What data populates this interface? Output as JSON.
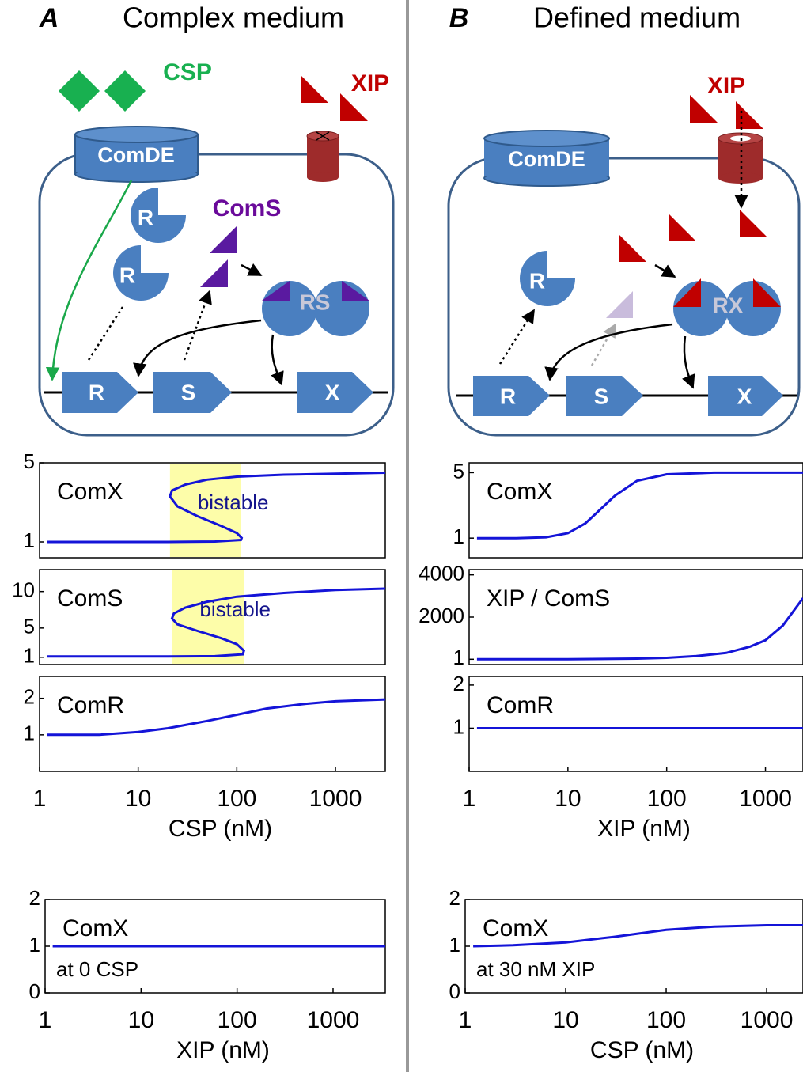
{
  "panels": [
    {
      "letter": "A",
      "title": "Complex medium",
      "diagram": {
        "signal": "CSP",
        "peptide": "XIP",
        "receptor": "ComDE",
        "regulator_1": "R",
        "regulator_2": "R",
        "comS": "ComS",
        "complex": "RS",
        "genes": [
          "R",
          "S",
          "X"
        ]
      },
      "charts": [
        {
          "type": "line",
          "label": "ComX",
          "color": "#1414d8",
          "xscale": "log",
          "xlim": [
            1,
            3200
          ],
          "ylim": [
            0.2,
            5
          ],
          "yticks": [
            1,
            5
          ],
          "highlight": {
            "range": [
              21,
              110
            ],
            "label": "bistable"
          },
          "x": [
            1.2,
            5,
            20,
            60,
            110,
            112,
            100,
            70,
            40,
            25,
            21,
            22,
            30,
            50,
            100,
            300,
            1000,
            3200
          ],
          "values": [
            1,
            1,
            1,
            1.02,
            1.1,
            1.2,
            1.45,
            1.8,
            2.3,
            2.8,
            3.3,
            3.6,
            3.9,
            4.15,
            4.3,
            4.4,
            4.45,
            4.5
          ]
        },
        {
          "type": "line",
          "label": "ComS",
          "color": "#1414d8",
          "xscale": "log",
          "xlim": [
            1,
            3200
          ],
          "ylim": [
            0,
            13
          ],
          "yticks": [
            1,
            5,
            10
          ],
          "highlight": {
            "range": [
              22,
              118
            ],
            "label": "bistable"
          },
          "x": [
            1.2,
            5,
            20,
            60,
            115,
            118,
            100,
            70,
            40,
            25,
            22,
            23,
            30,
            50,
            100,
            300,
            1000,
            3200
          ],
          "values": [
            1.1,
            1.1,
            1.1,
            1.15,
            1.4,
            1.9,
            2.8,
            3.6,
            4.6,
            5.5,
            6.3,
            7,
            7.8,
            8.6,
            9.3,
            9.8,
            10.2,
            10.4
          ]
        },
        {
          "type": "line",
          "label": "ComR",
          "color": "#1414d8",
          "xscale": "log",
          "xlim": [
            1,
            3200
          ],
          "ylim": [
            0,
            2.6
          ],
          "yticks": [
            1,
            2
          ],
          "xticks": [
            1,
            10,
            100,
            1000
          ],
          "xlabel": "CSP  (nM)",
          "x": [
            1.2,
            4,
            10,
            20,
            50,
            100,
            200,
            500,
            1000,
            3200
          ],
          "values": [
            1,
            1,
            1.08,
            1.18,
            1.38,
            1.55,
            1.72,
            1.85,
            1.92,
            1.97
          ]
        },
        {
          "type": "line",
          "label": "ComX",
          "note": "at 0 CSP",
          "color": "#1414d8",
          "xscale": "log",
          "xlim": [
            1,
            3500
          ],
          "ylim": [
            0,
            2
          ],
          "yticks": [
            0,
            1,
            2
          ],
          "xticks": [
            1,
            10,
            100,
            1000
          ],
          "xlabel": "XIP  (nM)",
          "x": [
            1.2,
            3500
          ],
          "values": [
            1,
            1
          ]
        }
      ]
    },
    {
      "letter": "B",
      "title": "Defined medium",
      "diagram": {
        "peptide": "XIP",
        "receptor": "ComDE",
        "regulator": "R",
        "complex": "RX",
        "genes": [
          "R",
          "S",
          "X"
        ]
      },
      "charts": [
        {
          "type": "line",
          "label": "ComX",
          "color": "#1414d8",
          "xscale": "log",
          "xlim": [
            1,
            2400
          ],
          "ylim": [
            -0.2,
            5.6
          ],
          "yticks": [
            1,
            5
          ],
          "x": [
            1.2,
            3,
            6,
            10,
            15,
            20,
            30,
            50,
            100,
            300,
            1000,
            2400
          ],
          "values": [
            1,
            1,
            1.05,
            1.3,
            1.9,
            2.6,
            3.6,
            4.5,
            4.9,
            5,
            5,
            5
          ]
        },
        {
          "type": "line",
          "label": "XIP / ComS",
          "color": "#1414d8",
          "xscale": "log",
          "xlim": [
            1,
            2400
          ],
          "ylim": [
            -250,
            4250
          ],
          "yticks": [
            1,
            2000,
            4000
          ],
          "x": [
            1.2,
            10,
            50,
            100,
            200,
            400,
            700,
            1000,
            1500,
            2400
          ],
          "values": [
            1,
            5,
            30,
            70,
            150,
            300,
            600,
            900,
            1600,
            2900
          ]
        },
        {
          "type": "line",
          "label": "ComR",
          "color": "#1414d8",
          "xscale": "log",
          "xlim": [
            1,
            2400
          ],
          "ylim": [
            0,
            2.2
          ],
          "yticks": [
            1,
            2
          ],
          "xticks": [
            1,
            10,
            100,
            1000
          ],
          "xlabel": "XIP  (nM)",
          "x": [
            1.2,
            2400
          ],
          "values": [
            1,
            1
          ]
        },
        {
          "type": "line",
          "label": "ComX",
          "note": "at 30 nM XIP",
          "color": "#1414d8",
          "xscale": "log",
          "xlim": [
            1,
            2300
          ],
          "ylim": [
            0,
            2
          ],
          "yticks": [
            0,
            1,
            2
          ],
          "xticks": [
            1,
            10,
            100,
            1000
          ],
          "xlabel": "CSP  (nM)",
          "x": [
            1.2,
            3,
            10,
            30,
            100,
            300,
            1000,
            2300
          ],
          "values": [
            1,
            1.02,
            1.08,
            1.2,
            1.35,
            1.42,
            1.45,
            1.45
          ]
        }
      ]
    }
  ]
}
